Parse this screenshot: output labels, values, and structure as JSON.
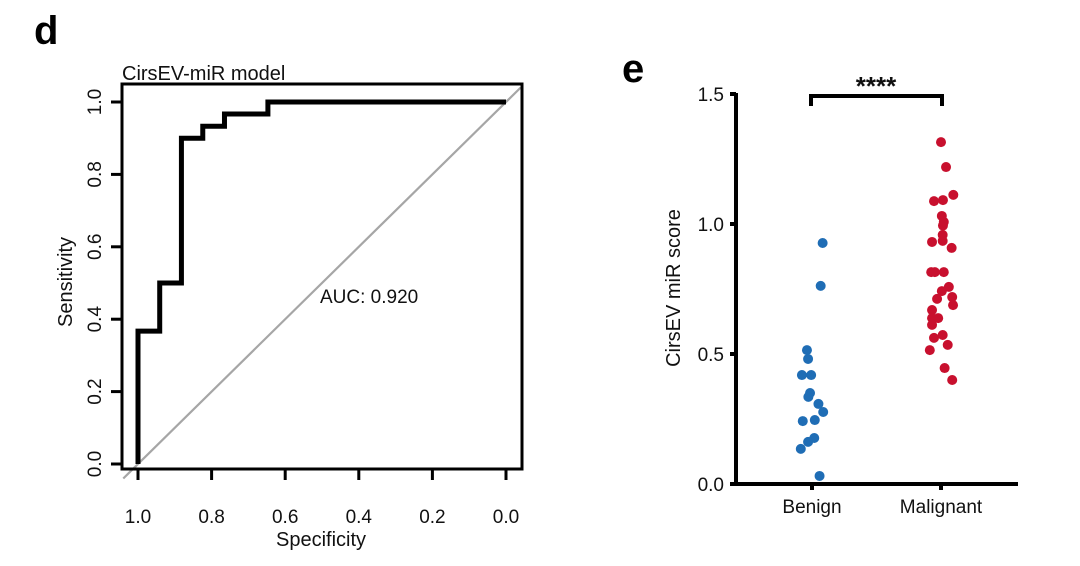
{
  "panels": {
    "d": {
      "letter": "d"
    },
    "e": {
      "letter": "e"
    }
  },
  "chart_data": [
    {
      "type": "line",
      "panel": "d",
      "title": "CirsEV-miR model",
      "xlabel": "Specificity",
      "ylabel": "Sensitivity",
      "xlim": [
        1.0,
        0.0
      ],
      "ylim": [
        0.0,
        1.0
      ],
      "x_reversed": true,
      "xticks": [
        "1.0",
        "0.8",
        "0.6",
        "0.4",
        "0.2",
        "0.0"
      ],
      "xtick_values": [
        1.0,
        0.8,
        0.6,
        0.4,
        0.2,
        0.0
      ],
      "yticks": [
        "0.0",
        "0.2",
        "0.4",
        "0.6",
        "0.8",
        "1.0"
      ],
      "ytick_values": [
        0.0,
        0.2,
        0.4,
        0.6,
        0.8,
        1.0
      ],
      "grid": false,
      "annotation": "AUC: 0.920",
      "series": [
        {
          "name": "ROC curve",
          "color": "#000000",
          "specificity": [
            1.0,
            1.0,
            0.941,
            0.941,
            0.882,
            0.882,
            0.824,
            0.824,
            0.765,
            0.765,
            0.647,
            0.647,
            0.0
          ],
          "sensitivity": [
            0.0,
            0.367,
            0.367,
            0.5,
            0.5,
            0.9,
            0.9,
            0.933,
            0.933,
            0.967,
            0.967,
            1.0,
            1.0
          ]
        },
        {
          "name": "reference diagonal",
          "color": "#a6a6a6",
          "specificity": [
            1.04,
            -0.04
          ],
          "sensitivity": [
            -0.04,
            1.04
          ]
        }
      ]
    },
    {
      "type": "scatter",
      "panel": "e",
      "title": "",
      "xlabel": "",
      "ylabel": "CirsEV miR score",
      "categories": [
        "Benign",
        "Malignant"
      ],
      "ylim": [
        0.0,
        1.5
      ],
      "yticks": [
        "0.0",
        "0.5",
        "1.0",
        "1.5"
      ],
      "ytick_values": [
        0.0,
        0.5,
        1.0,
        1.5
      ],
      "grid": false,
      "significance": {
        "between": [
          "Benign",
          "Malignant"
        ],
        "label": "****"
      },
      "series": [
        {
          "name": "Benign",
          "color": "#1f6db5",
          "values": [
            0.927,
            0.762,
            0.515,
            0.481,
            0.419,
            0.419,
            0.35,
            0.335,
            0.308,
            0.277,
            0.246,
            0.242,
            0.177,
            0.162,
            0.135,
            0.031
          ],
          "jitter": [
            0.38,
            0.31,
            -0.18,
            -0.14,
            -0.36,
            -0.03,
            -0.07,
            -0.13,
            0.23,
            0.4,
            0.1,
            -0.33,
            0.08,
            -0.14,
            -0.4,
            0.27
          ]
        },
        {
          "name": "Malignant",
          "color": "#c8102e",
          "values": [
            1.315,
            1.219,
            1.112,
            1.092,
            1.088,
            1.031,
            1.008,
            0.994,
            0.958,
            0.935,
            0.931,
            0.908,
            0.815,
            0.815,
            0.815,
            0.758,
            0.742,
            0.719,
            0.712,
            0.688,
            0.669,
            0.638,
            0.638,
            0.612,
            0.573,
            0.562,
            0.535,
            0.515,
            0.446,
            0.4
          ],
          "jitter": [
            0.0,
            0.18,
            0.44,
            0.07,
            -0.25,
            0.03,
            0.1,
            0.07,
            0.06,
            0.06,
            -0.32,
            0.38,
            -0.35,
            -0.22,
            0.1,
            0.28,
            0.03,
            0.4,
            -0.14,
            0.43,
            -0.32,
            -0.32,
            -0.1,
            -0.32,
            0.06,
            -0.25,
            0.24,
            -0.4,
            0.13,
            0.4
          ]
        }
      ]
    }
  ]
}
